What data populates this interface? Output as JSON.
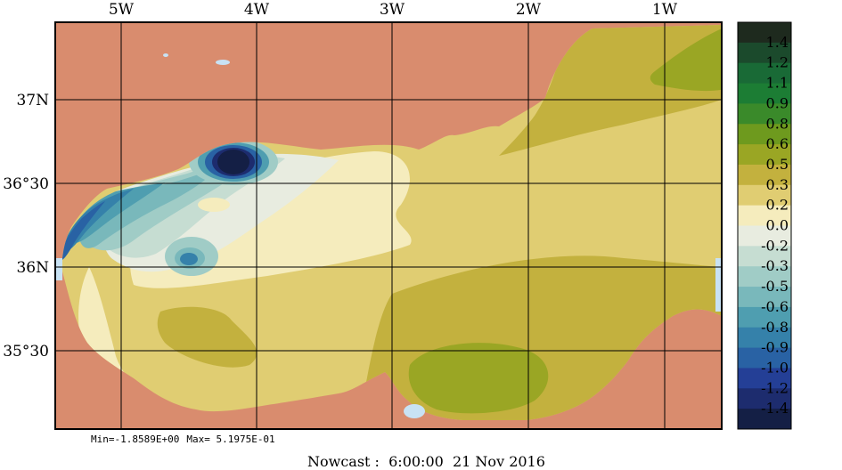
{
  "map": {
    "lon_labels": [
      "5W",
      "4W",
      "3W",
      "2W",
      "1W"
    ],
    "lat_labels": [
      "37N",
      "36°30",
      "36N",
      "35°30"
    ],
    "land_color": "#d98c6e",
    "frame_color": "#000000"
  },
  "colorbar": {
    "levels": [
      "1.4",
      "1.2",
      "1.1",
      "0.9",
      "0.8",
      "0.6",
      "0.5",
      "0.3",
      "0.2",
      "0.0",
      "-0.2",
      "-0.3",
      "-0.5",
      "-0.6",
      "-0.8",
      "-0.9",
      "-1.0",
      "-1.2",
      "-1.4"
    ],
    "colors": [
      "#1e2a1e",
      "#1b4a2c",
      "#196a36",
      "#1c7d34",
      "#3a8a2a",
      "#6e9a1e",
      "#9aa624",
      "#c3b13e",
      "#e0cd72",
      "#f5ecbd",
      "#e8ece0",
      "#c6ddd2",
      "#a0ccc6",
      "#79b8bb",
      "#4f9eb0",
      "#3581aa",
      "#2962a4",
      "#243f96",
      "#1d2c6e",
      "#141f45"
    ]
  },
  "stats": {
    "min": "Min=-1.8589E+00",
    "max": "Max= 5.1975E-01"
  },
  "footer": {
    "label": "Nowcast :",
    "time": "6:00:00",
    "date": "21 Nov 2016"
  }
}
